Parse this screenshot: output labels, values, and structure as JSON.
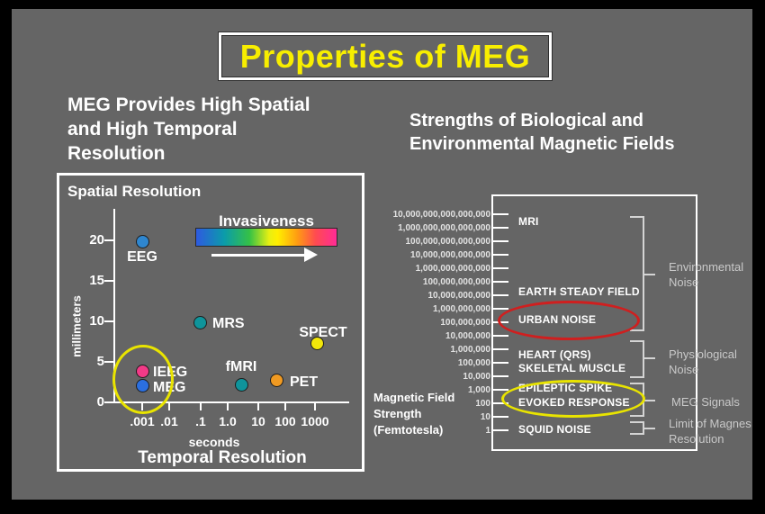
{
  "slide": {
    "title": "Properties of MEG"
  },
  "left_section": {
    "heading": "MEG Provides High Spatial\nand High Temporal\nResolution",
    "plot_title": "Spatial Resolution",
    "invasiveness_label": "Invasiveness",
    "ylabel": "millimeters",
    "y_ticks": [
      "20",
      "15",
      "10",
      "5",
      "0"
    ],
    "x_ticks": [
      ".001",
      ".01",
      ".1",
      "1.0",
      "10",
      "100",
      "1000"
    ],
    "xlabel": "seconds",
    "x_title": "Temporal Resolution",
    "points": [
      {
        "label": "EEG",
        "color": "#2e86cf"
      },
      {
        "label": "MRS",
        "color": "#0f949b"
      },
      {
        "label": "SPECT",
        "color": "#f2e60a"
      },
      {
        "label": "IEEG",
        "color": "#f23a87"
      },
      {
        "label": "MEG",
        "color": "#2b6fdf"
      },
      {
        "label": "fMRI",
        "color": "#0f949b"
      },
      {
        "label": "PET",
        "color": "#f09a22"
      }
    ]
  },
  "right_section": {
    "heading": "Strengths of Biological and\nEnvironmental Magnetic Fields",
    "axis_label": "Magnetic Field\nStrength\n(Femtotesla)",
    "scale_values": [
      "10,000,000,000,000,000",
      "1,000,000,000,000,000",
      "100,000,000,000,000",
      "10,000,000,000,000",
      "1,000,000,000,000",
      "100,000,000,000",
      "10,000,000,000",
      "1,000,000,000",
      "100,000,000",
      "10,000,000",
      "1,000,000",
      "100,000",
      "10,000",
      "1,000",
      "100",
      "10",
      "1"
    ],
    "field_labels": [
      "MRI",
      "EARTH STEADY FIELD",
      "URBAN NOISE",
      "HEART (QRS)",
      "SKELETAL MUSCLE",
      "EPILEPTIC SPIKE",
      "EVOKED RESPONSE",
      "SQUID NOISE"
    ],
    "group_labels": [
      "Environmental\nNoise",
      "Physiological\nNoise",
      "MEG Signals",
      "Limit of Magnes\nResolution"
    ]
  },
  "colors": {
    "background": "#656565",
    "frame": "#000000",
    "title_text": "#f8ee00",
    "highlight_red": "#cf1f1f",
    "highlight_yellow": "#e9e400"
  },
  "chart_data": [
    {
      "type": "scatter",
      "title": "Spatial Resolution vs Temporal Resolution",
      "xlabel": "seconds (Temporal Resolution)",
      "ylabel": "millimeters (Spatial Resolution)",
      "x_scale": "log",
      "x_ticks": [
        0.001,
        0.01,
        0.1,
        1.0,
        10,
        100,
        1000
      ],
      "ylim": [
        0,
        22
      ],
      "points": [
        {
          "label": "EEG",
          "x": 0.001,
          "y": 20
        },
        {
          "label": "MRS",
          "x": 0.1,
          "y": 10
        },
        {
          "label": "SPECT",
          "x": 1000,
          "y": 7.5
        },
        {
          "label": "IEEG",
          "x": 0.001,
          "y": 4
        },
        {
          "label": "MEG",
          "x": 0.001,
          "y": 2.2
        },
        {
          "label": "fMRI",
          "x": 4,
          "y": 2.3
        },
        {
          "label": "PET",
          "x": 50,
          "y": 3
        }
      ],
      "annotations": [
        "Invasiveness color gradient legend, low (blue) to high (magenta), arrow pointing right",
        "Yellow ellipse highlights IEEG and MEG points"
      ],
      "legend_position": "top-right",
      "grid": false
    },
    {
      "type": "scale",
      "title": "Strengths of Biological and Environmental Magnetic Fields",
      "unit": "Femtotesla",
      "axis_range": [
        1,
        10000000000000000
      ],
      "items": [
        {
          "label": "MRI",
          "approx_femtotesla": 1000000000000000
        },
        {
          "label": "EARTH STEADY FIELD",
          "approx_femtotesla": 10000000000
        },
        {
          "label": "URBAN NOISE",
          "approx_femtotesla": 100000000,
          "highlight": "red-ellipse"
        },
        {
          "label": "HEART (QRS)",
          "approx_femtotesla": 1000000
        },
        {
          "label": "SKELETAL MUSCLE",
          "approx_femtotesla": 100000
        },
        {
          "label": "EPILEPTIC SPIKE",
          "approx_femtotesla": 1000,
          "highlight": "yellow-ellipse"
        },
        {
          "label": "EVOKED RESPONSE",
          "approx_femtotesla": 100,
          "highlight": "yellow-ellipse"
        },
        {
          "label": "SQUID NOISE",
          "approx_femtotesla": 1
        }
      ],
      "groups": [
        {
          "label": "Environmental Noise",
          "covers": [
            "MRI",
            "EARTH STEADY FIELD",
            "URBAN NOISE"
          ]
        },
        {
          "label": "Physiological Noise",
          "covers": [
            "HEART (QRS)",
            "SKELETAL MUSCLE"
          ]
        },
        {
          "label": "MEG Signals",
          "covers": [
            "EPILEPTIC SPIKE",
            "EVOKED RESPONSE"
          ]
        },
        {
          "label": "Limit of Magnes Resolution",
          "covers": [
            "SQUID NOISE"
          ]
        }
      ]
    }
  ]
}
